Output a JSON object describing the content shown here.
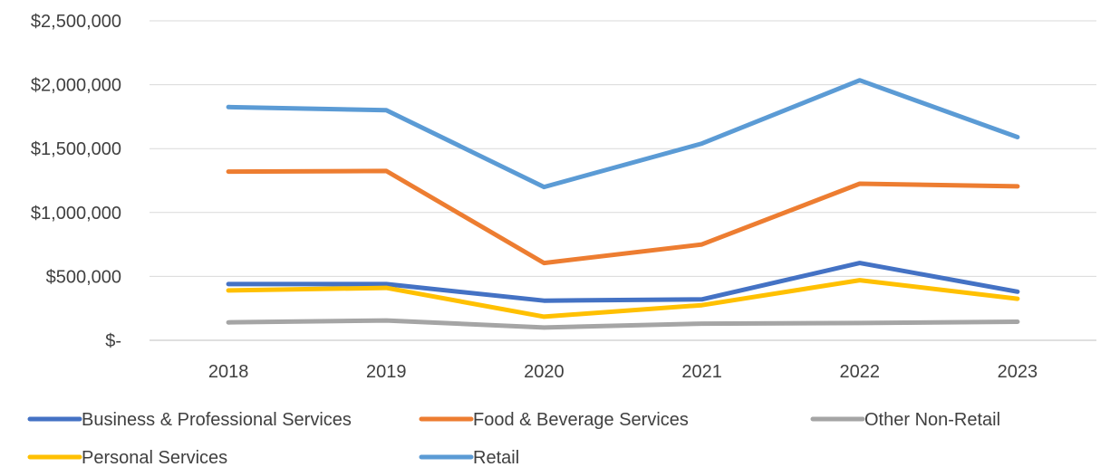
{
  "chart_data": {
    "type": "line",
    "categories": [
      "2018",
      "2019",
      "2020",
      "2021",
      "2022",
      "2023"
    ],
    "series": [
      {
        "name": "Business & Professional Services",
        "color": "#4472C4",
        "values": [
          440000,
          440000,
          310000,
          320000,
          605000,
          380000
        ]
      },
      {
        "name": "Food & Beverage Services",
        "color": "#ED7D31",
        "values": [
          1320000,
          1325000,
          605000,
          750000,
          1225000,
          1205000
        ]
      },
      {
        "name": "Other Non-Retail",
        "color": "#A5A5A5",
        "values": [
          140000,
          155000,
          100000,
          130000,
          135000,
          145000
        ]
      },
      {
        "name": "Personal Services",
        "color": "#FFC000",
        "values": [
          390000,
          410000,
          185000,
          275000,
          470000,
          325000
        ]
      },
      {
        "name": "Retail",
        "color": "#5B9BD5",
        "values": [
          1825000,
          1800000,
          1200000,
          1540000,
          2035000,
          1590000
        ]
      }
    ],
    "ylim": [
      0,
      2500000
    ],
    "ytick_labels": [
      "$-",
      "$500,000",
      "$1,000,000",
      "$1,500,000",
      "$2,000,000",
      "$2,500,000"
    ],
    "grid": true,
    "legend_position": "bottom",
    "title": "",
    "xlabel": "",
    "ylabel": ""
  }
}
